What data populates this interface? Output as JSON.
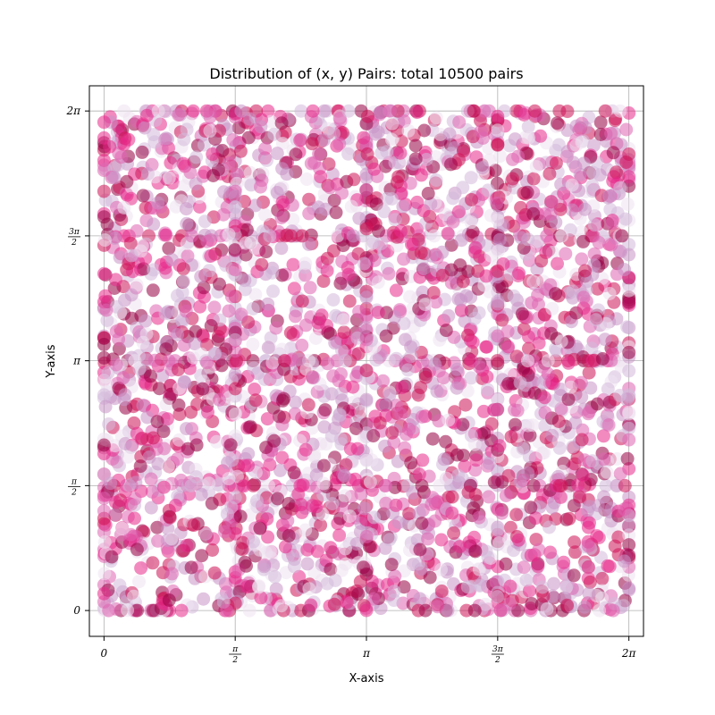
{
  "chart_data": {
    "type": "scatter",
    "title": "Distribution of (x, y) Pairs: total 10500 pairs",
    "xlabel": "X-axis",
    "ylabel": "Y-axis",
    "xlim": [
      -0.175,
      6.458
    ],
    "ylim": [
      -0.325,
      6.6
    ],
    "grid": true,
    "x_ticks": [
      {
        "value": 0,
        "num": "",
        "den": "",
        "plain": "0"
      },
      {
        "value": 1.5708,
        "num": "π",
        "den": "2",
        "plain": ""
      },
      {
        "value": 3.1416,
        "num": "",
        "den": "",
        "plain": "π"
      },
      {
        "value": 4.7124,
        "num": "3π",
        "den": "2",
        "plain": ""
      },
      {
        "value": 6.2832,
        "num": "",
        "den": "",
        "plain": "2π"
      }
    ],
    "y_ticks": [
      {
        "value": 0,
        "num": "",
        "den": "",
        "plain": "0"
      },
      {
        "value": 1.5708,
        "num": "π",
        "den": "2",
        "plain": ""
      },
      {
        "value": 3.1416,
        "num": "",
        "den": "",
        "plain": "π"
      },
      {
        "value": 4.7124,
        "num": "3π",
        "den": "2",
        "plain": ""
      },
      {
        "value": 6.2832,
        "num": "",
        "den": "",
        "plain": "2π"
      }
    ],
    "total_points": 10500,
    "x_range": [
      0,
      6.2832
    ],
    "y_range": [
      0,
      6.2832
    ],
    "distribution": "uniform on [0, 2π] × [0, 2π]; a denser share of points is concentrated on the gridlines at multiples of π/2",
    "colormap": [
      "#efe2f0",
      "#d4b9da",
      "#c994c7",
      "#df65b0",
      "#e7298a",
      "#ce1256",
      "#980043"
    ],
    "marker_alpha": 0.55,
    "axis_color": "#000000",
    "grid_color": "#b0b0b0"
  }
}
